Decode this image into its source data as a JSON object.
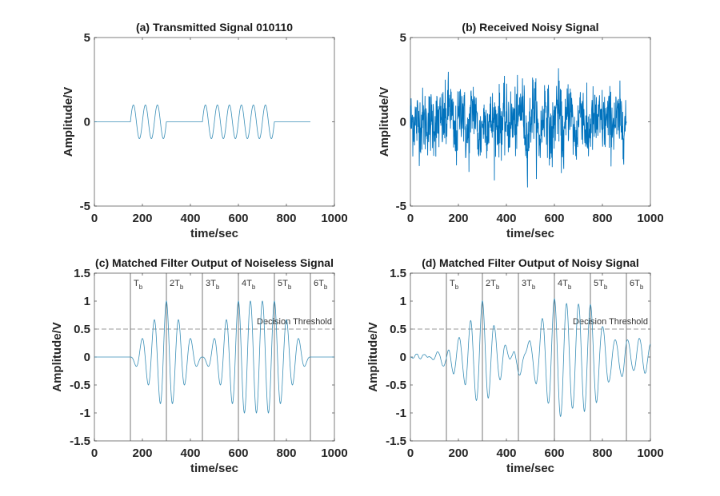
{
  "chart_data": [
    {
      "type": "line",
      "title": "(a) Transmitted Signal 010110",
      "xlabel": "time/sec",
      "ylabel": "Amplitude/V",
      "xlim": [
        0,
        1000
      ],
      "ylim": [
        -5,
        5
      ],
      "xticks": [
        "0",
        "200",
        "400",
        "600",
        "800",
        "1000"
      ],
      "yticks": [
        "-5",
        "0",
        "5"
      ],
      "grid": false,
      "series_color": "#3a8fb7",
      "signal": {
        "bits": [
          0,
          1,
          0,
          1,
          1,
          0
        ],
        "bit_period": 150,
        "carrier_cycles_per_bit": 3,
        "amplitude": 1,
        "t_range": [
          0,
          900
        ]
      }
    },
    {
      "type": "line",
      "title": "(b) Received Noisy Signal",
      "xlabel": "time/sec",
      "ylabel": "Amplitude/V",
      "xlim": [
        0,
        1000
      ],
      "ylim": [
        -5,
        5
      ],
      "xticks": [
        "0",
        "200",
        "400",
        "600",
        "800",
        "1000"
      ],
      "yticks": [
        "-5",
        "0",
        "5"
      ],
      "grid": false,
      "series_color": "#0072bd",
      "signal": {
        "source": "transmitted signal plus noise",
        "noise_std": 1.0,
        "t_range": [
          0,
          900
        ]
      }
    },
    {
      "type": "line",
      "title": "(c) Matched Filter Output of Noiseless Signal",
      "xlabel": "time/sec",
      "ylabel": "Amplitude/V",
      "xlim": [
        0,
        1000
      ],
      "ylim": [
        -1.5,
        1.5
      ],
      "xticks": [
        "0",
        "200",
        "400",
        "600",
        "800",
        "1000"
      ],
      "yticks": [
        "-1.5",
        "-1",
        "-0.5",
        "0",
        "0.5",
        "1",
        "1.5"
      ],
      "grid": false,
      "series_color": "#3a8fb7",
      "threshold": {
        "value": 0.5,
        "label": "Decision Threshold"
      },
      "markers": [
        {
          "x": 150,
          "label": "T",
          "sub": "b"
        },
        {
          "x": 300,
          "label": "2T",
          "sub": "b"
        },
        {
          "x": 450,
          "label": "3T",
          "sub": "b"
        },
        {
          "x": 600,
          "label": "4T",
          "sub": "b"
        },
        {
          "x": 750,
          "label": "5T",
          "sub": "b"
        },
        {
          "x": 900,
          "label": "6T",
          "sub": "b"
        }
      ],
      "peaks": [
        {
          "x": 300,
          "y": 1
        },
        {
          "x": 600,
          "y": 1
        },
        {
          "x": 750,
          "y": 1
        }
      ]
    },
    {
      "type": "line",
      "title": "(d) Matched Filter Output of Noisy Signal",
      "xlabel": "time/sec",
      "ylabel": "Amplitude/V",
      "xlim": [
        0,
        1000
      ],
      "ylim": [
        -1.5,
        1.5
      ],
      "xticks": [
        "0",
        "200",
        "400",
        "600",
        "800",
        "1000"
      ],
      "yticks": [
        "-1.5",
        "-1",
        "-0.5",
        "0",
        "0.5",
        "1",
        "1.5"
      ],
      "grid": false,
      "series_color": "#3a8fb7",
      "threshold": {
        "value": 0.5,
        "label": "Decision Threshold"
      },
      "markers": [
        {
          "x": 150,
          "label": "T",
          "sub": "b"
        },
        {
          "x": 300,
          "label": "2T",
          "sub": "b"
        },
        {
          "x": 450,
          "label": "3T",
          "sub": "b"
        },
        {
          "x": 600,
          "label": "4T",
          "sub": "b"
        },
        {
          "x": 750,
          "label": "5T",
          "sub": "b"
        },
        {
          "x": 900,
          "label": "6T",
          "sub": "b"
        }
      ],
      "peaks": [
        {
          "x": 300,
          "y": 0.93
        },
        {
          "x": 600,
          "y": 0.93
        },
        {
          "x": 700,
          "y": 1.0
        },
        {
          "x": 750,
          "y": 0.9
        }
      ]
    }
  ]
}
